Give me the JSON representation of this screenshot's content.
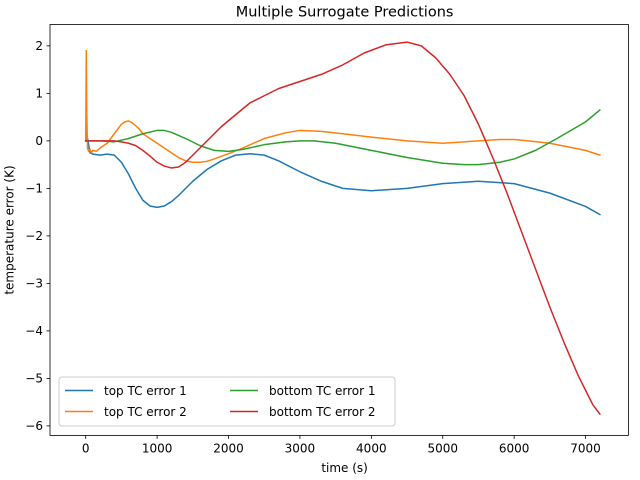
{
  "chart_data": {
    "type": "line",
    "title": "Multiple Surrogate Predictions",
    "xlabel": "time (s)",
    "ylabel": "temperature error (K)",
    "xlim": [
      -500,
      7600
    ],
    "ylim": [
      -6.2,
      2.45
    ],
    "xticks": [
      0,
      1000,
      2000,
      3000,
      4000,
      5000,
      6000,
      7000
    ],
    "xtick_labels": [
      "0",
      "1000",
      "2000",
      "3000",
      "4000",
      "5000",
      "6000",
      "7000"
    ],
    "yticks": [
      2,
      1,
      0,
      -1,
      -2,
      -3,
      -4,
      -5,
      -6
    ],
    "ytick_labels": [
      "2",
      "1",
      "0",
      "−1",
      "−2",
      "−3",
      "−4",
      "−5",
      "−6"
    ],
    "grid": false,
    "legend_position": "lower-left",
    "legend_columns": 2,
    "series": [
      {
        "name": "top TC error 1",
        "color": "#1f77b4",
        "x": [
          0,
          20,
          60,
          100,
          200,
          300,
          400,
          500,
          600,
          700,
          800,
          900,
          1000,
          1100,
          1200,
          1300,
          1400,
          1500,
          1700,
          1900,
          2100,
          2300,
          2500,
          2700,
          3000,
          3300,
          3600,
          4000,
          4500,
          5000,
          5500,
          6000,
          6500,
          7000,
          7200
        ],
        "y": [
          0,
          0.1,
          -0.25,
          -0.28,
          -0.3,
          -0.28,
          -0.3,
          -0.45,
          -0.7,
          -1.0,
          -1.25,
          -1.37,
          -1.4,
          -1.37,
          -1.28,
          -1.15,
          -1.0,
          -0.85,
          -0.6,
          -0.42,
          -0.3,
          -0.27,
          -0.3,
          -0.42,
          -0.65,
          -0.85,
          -1.0,
          -1.05,
          -1.0,
          -0.9,
          -0.85,
          -0.9,
          -1.1,
          -1.38,
          -1.55
        ]
      },
      {
        "name": "top TC error 2",
        "color": "#ff7f0e",
        "x": [
          0,
          8,
          15,
          25,
          40,
          60,
          80,
          100,
          150,
          200,
          250,
          300,
          350,
          400,
          450,
          500,
          550,
          600,
          650,
          700,
          750,
          800,
          850,
          900,
          1000,
          1100,
          1200,
          1300,
          1400,
          1500,
          1600,
          1700,
          1800,
          2000,
          2200,
          2500,
          2800,
          3000,
          3300,
          3600,
          4000,
          4500,
          5000,
          5500,
          5800,
          6000,
          6200,
          6500,
          7000,
          7200
        ],
        "y": [
          0,
          1.9,
          0.6,
          -0.15,
          -0.22,
          -0.18,
          -0.25,
          -0.2,
          -0.22,
          -0.15,
          -0.1,
          -0.05,
          0.05,
          0.15,
          0.25,
          0.35,
          0.4,
          0.42,
          0.38,
          0.32,
          0.25,
          0.15,
          0.1,
          0.05,
          -0.05,
          -0.15,
          -0.25,
          -0.35,
          -0.42,
          -0.45,
          -0.45,
          -0.43,
          -0.38,
          -0.27,
          -0.15,
          0.05,
          0.17,
          0.22,
          0.2,
          0.15,
          0.08,
          0.0,
          -0.05,
          0.0,
          0.03,
          0.03,
          0.0,
          -0.05,
          -0.2,
          -0.3
        ]
      },
      {
        "name": "bottom TC error 1",
        "color": "#2ca02c",
        "x": [
          0,
          200,
          400,
          600,
          800,
          1000,
          1100,
          1200,
          1400,
          1600,
          1800,
          2000,
          2200,
          2500,
          2800,
          3000,
          3200,
          3500,
          4000,
          4500,
          5000,
          5300,
          5500,
          5800,
          6000,
          6300,
          6600,
          7000,
          7200
        ],
        "y": [
          0,
          0.0,
          -0.02,
          0.05,
          0.15,
          0.22,
          0.22,
          0.18,
          0.05,
          -0.1,
          -0.2,
          -0.22,
          -0.18,
          -0.08,
          -0.02,
          0.0,
          0.0,
          -0.05,
          -0.2,
          -0.35,
          -0.47,
          -0.5,
          -0.5,
          -0.45,
          -0.38,
          -0.2,
          0.05,
          0.4,
          0.65
        ]
      },
      {
        "name": "bottom TC error 2",
        "color": "#d62728",
        "x": [
          0,
          100,
          200,
          300,
          400,
          500,
          600,
          700,
          800,
          900,
          1000,
          1100,
          1200,
          1300,
          1400,
          1500,
          1700,
          1900,
          2100,
          2300,
          2500,
          2700,
          3000,
          3300,
          3600,
          3900,
          4200,
          4500,
          4700,
          4900,
          5100,
          5300,
          5500,
          5700,
          5900,
          6100,
          6300,
          6500,
          6700,
          6900,
          7100,
          7200
        ],
        "y": [
          0,
          0.0,
          0.0,
          0.0,
          0.0,
          -0.02,
          -0.05,
          -0.1,
          -0.2,
          -0.32,
          -0.45,
          -0.53,
          -0.57,
          -0.55,
          -0.45,
          -0.3,
          0.0,
          0.3,
          0.55,
          0.8,
          0.95,
          1.1,
          1.25,
          1.4,
          1.6,
          1.85,
          2.02,
          2.08,
          2.0,
          1.75,
          1.4,
          0.95,
          0.35,
          -0.35,
          -1.1,
          -1.9,
          -2.7,
          -3.5,
          -4.25,
          -4.95,
          -5.55,
          -5.75
        ]
      }
    ]
  }
}
